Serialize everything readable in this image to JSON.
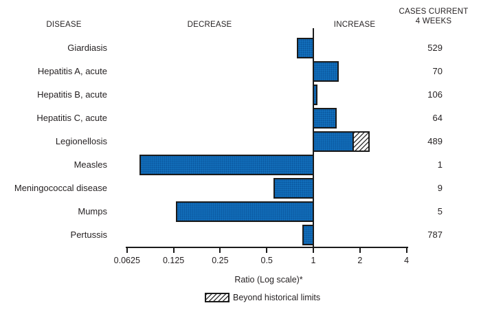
{
  "header": {
    "disease": "DISEASE",
    "decrease": "DECREASE",
    "increase": "INCREASE",
    "cases_line1": "CASES CURRENT",
    "cases_line2": "4 WEEKS"
  },
  "chart_data": {
    "type": "bar",
    "orientation": "horizontal",
    "scale": "log2",
    "baseline": 1,
    "title": "",
    "xlabel": "Ratio (Log scale)*",
    "xlim": [
      0.0625,
      4
    ],
    "x_ticks": [
      0.0625,
      0.125,
      0.25,
      0.5,
      1,
      2,
      4
    ],
    "x_tick_labels": [
      "0.0625",
      "0.125",
      "0.25",
      "0.5",
      "1",
      "2",
      "4"
    ],
    "grid": false,
    "legend_position": "bottom",
    "legend": [
      {
        "label": "Beyond historical limits",
        "style": "hatched"
      }
    ],
    "rows": [
      {
        "disease": "Giardiasis",
        "ratio": 0.78,
        "beyond_limit_ratio": null,
        "cases": "529"
      },
      {
        "disease": "Hepatitis A, acute",
        "ratio": 1.45,
        "beyond_limit_ratio": null,
        "cases": "70"
      },
      {
        "disease": "Hepatitis B, acute",
        "ratio": 1.05,
        "beyond_limit_ratio": null,
        "cases": "106"
      },
      {
        "disease": "Hepatitis C, acute",
        "ratio": 1.4,
        "beyond_limit_ratio": null,
        "cases": "64"
      },
      {
        "disease": "Legionellosis",
        "ratio": 1.8,
        "beyond_limit_ratio": 2.3,
        "cases": "489"
      },
      {
        "disease": "Measles",
        "ratio": 0.075,
        "beyond_limit_ratio": null,
        "cases": "1"
      },
      {
        "disease": "Meningococcal disease",
        "ratio": 0.55,
        "beyond_limit_ratio": null,
        "cases": "9"
      },
      {
        "disease": "Mumps",
        "ratio": 0.13,
        "beyond_limit_ratio": null,
        "cases": "5"
      },
      {
        "disease": "Pertussis",
        "ratio": 0.85,
        "beyond_limit_ratio": null,
        "cases": "787"
      }
    ],
    "colors": {
      "bar_fill": "#1371bd",
      "bar_stipple": "#0a549a",
      "bar_border": "#1a1a1a",
      "text": "#231f20",
      "hatch_line": "#3a3a3a",
      "background": "#ffffff"
    }
  }
}
